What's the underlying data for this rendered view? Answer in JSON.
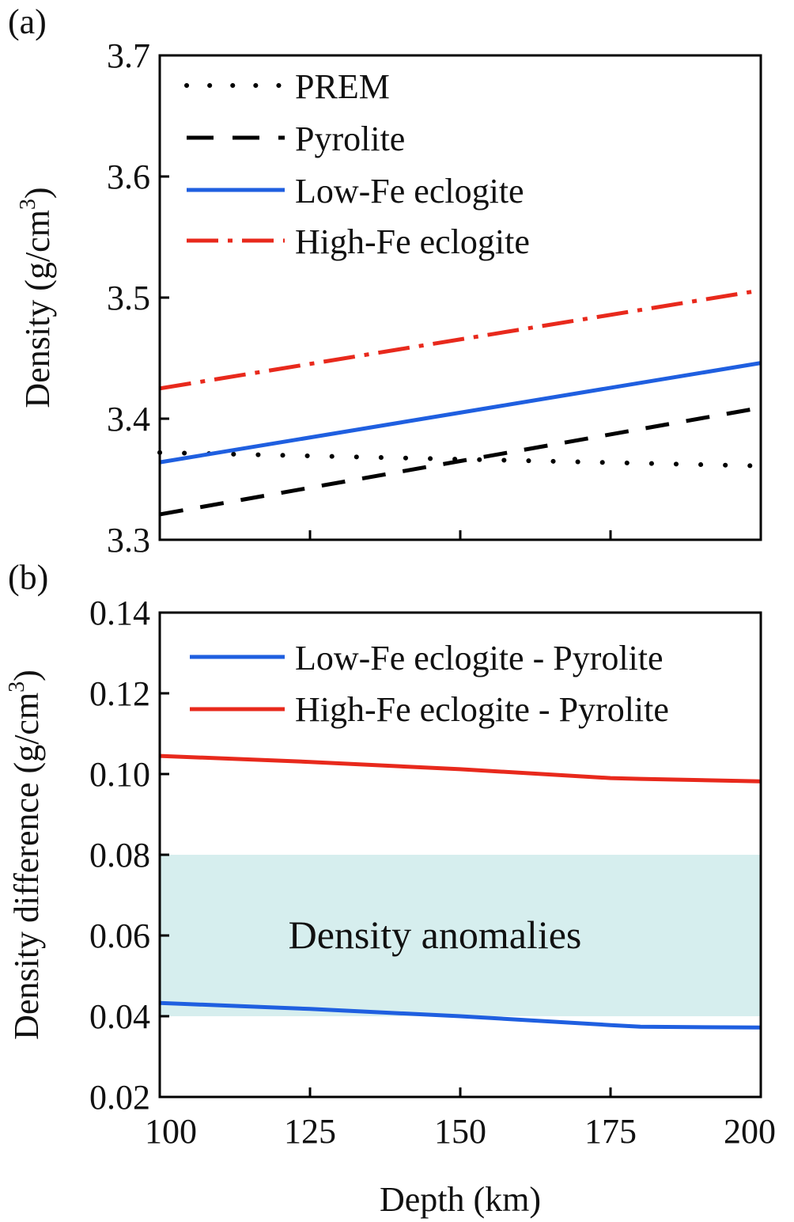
{
  "chart_data": [
    {
      "panel_label": "(a)",
      "type": "line",
      "ylabel": "Density (g/cm",
      "ylabel_sup": "3",
      "ylabel_close": ")",
      "xlim": [
        100,
        200
      ],
      "ylim": [
        3.3,
        3.7
      ],
      "x_ticks": [
        100,
        125,
        150,
        175,
        200
      ],
      "y_ticks": [
        3.3,
        3.4,
        3.5,
        3.6,
        3.7
      ],
      "y_tick_labels": [
        "3.3",
        "3.4",
        "3.5",
        "3.6",
        "3.7"
      ],
      "legend_position": "top-left",
      "series": [
        {
          "name": "PREM",
          "style": "dotted",
          "color": "#000000",
          "x": [
            100,
            200
          ],
          "y": [
            3.372,
            3.361
          ]
        },
        {
          "name": "Pyrolite",
          "style": "dashed",
          "color": "#000000",
          "x": [
            100,
            200
          ],
          "y": [
            3.321,
            3.409
          ]
        },
        {
          "name": "Low-Fe eclogite",
          "style": "solid",
          "color": "#1f5fe0",
          "x": [
            100,
            200
          ],
          "y": [
            3.364,
            3.446
          ]
        },
        {
          "name": "High-Fe eclogite",
          "style": "dashdot",
          "color": "#e8291c",
          "x": [
            100,
            200
          ],
          "y": [
            3.425,
            3.506
          ]
        }
      ]
    },
    {
      "panel_label": "(b)",
      "type": "line",
      "ylabel": "Density difference (g/cm",
      "ylabel_sup": "3",
      "ylabel_close": ")",
      "xlabel": "Depth (km)",
      "xlim": [
        100,
        200
      ],
      "ylim": [
        0.02,
        0.14
      ],
      "x_ticks": [
        100,
        125,
        150,
        175,
        200
      ],
      "x_tick_labels": [
        "100",
        "125",
        "150",
        "175",
        "200"
      ],
      "y_ticks": [
        0.02,
        0.04,
        0.06,
        0.08,
        0.1,
        0.12,
        0.14
      ],
      "y_tick_labels": [
        "0.02",
        "0.04",
        "0.06",
        "0.08",
        "0.10",
        "0.12",
        "0.14"
      ],
      "legend_position": "top-left",
      "shaded_band": {
        "label": "Density anomalies",
        "y_range": [
          0.04,
          0.08
        ],
        "color": "#d6eeee"
      },
      "series": [
        {
          "name": "Low-Fe eclogite - Pyrolite",
          "style": "solid",
          "color": "#1f5fe0",
          "x": [
            100,
            125,
            150,
            175,
            180,
            200
          ],
          "y": [
            0.0433,
            0.0418,
            0.04,
            0.0378,
            0.0374,
            0.0372
          ]
        },
        {
          "name": "High-Fe eclogite - Pyrolite",
          "style": "solid",
          "color": "#e8291c",
          "x": [
            100,
            125,
            150,
            175,
            180,
            200
          ],
          "y": [
            0.1045,
            0.103,
            0.1012,
            0.099,
            0.0988,
            0.0982
          ]
        }
      ]
    }
  ]
}
